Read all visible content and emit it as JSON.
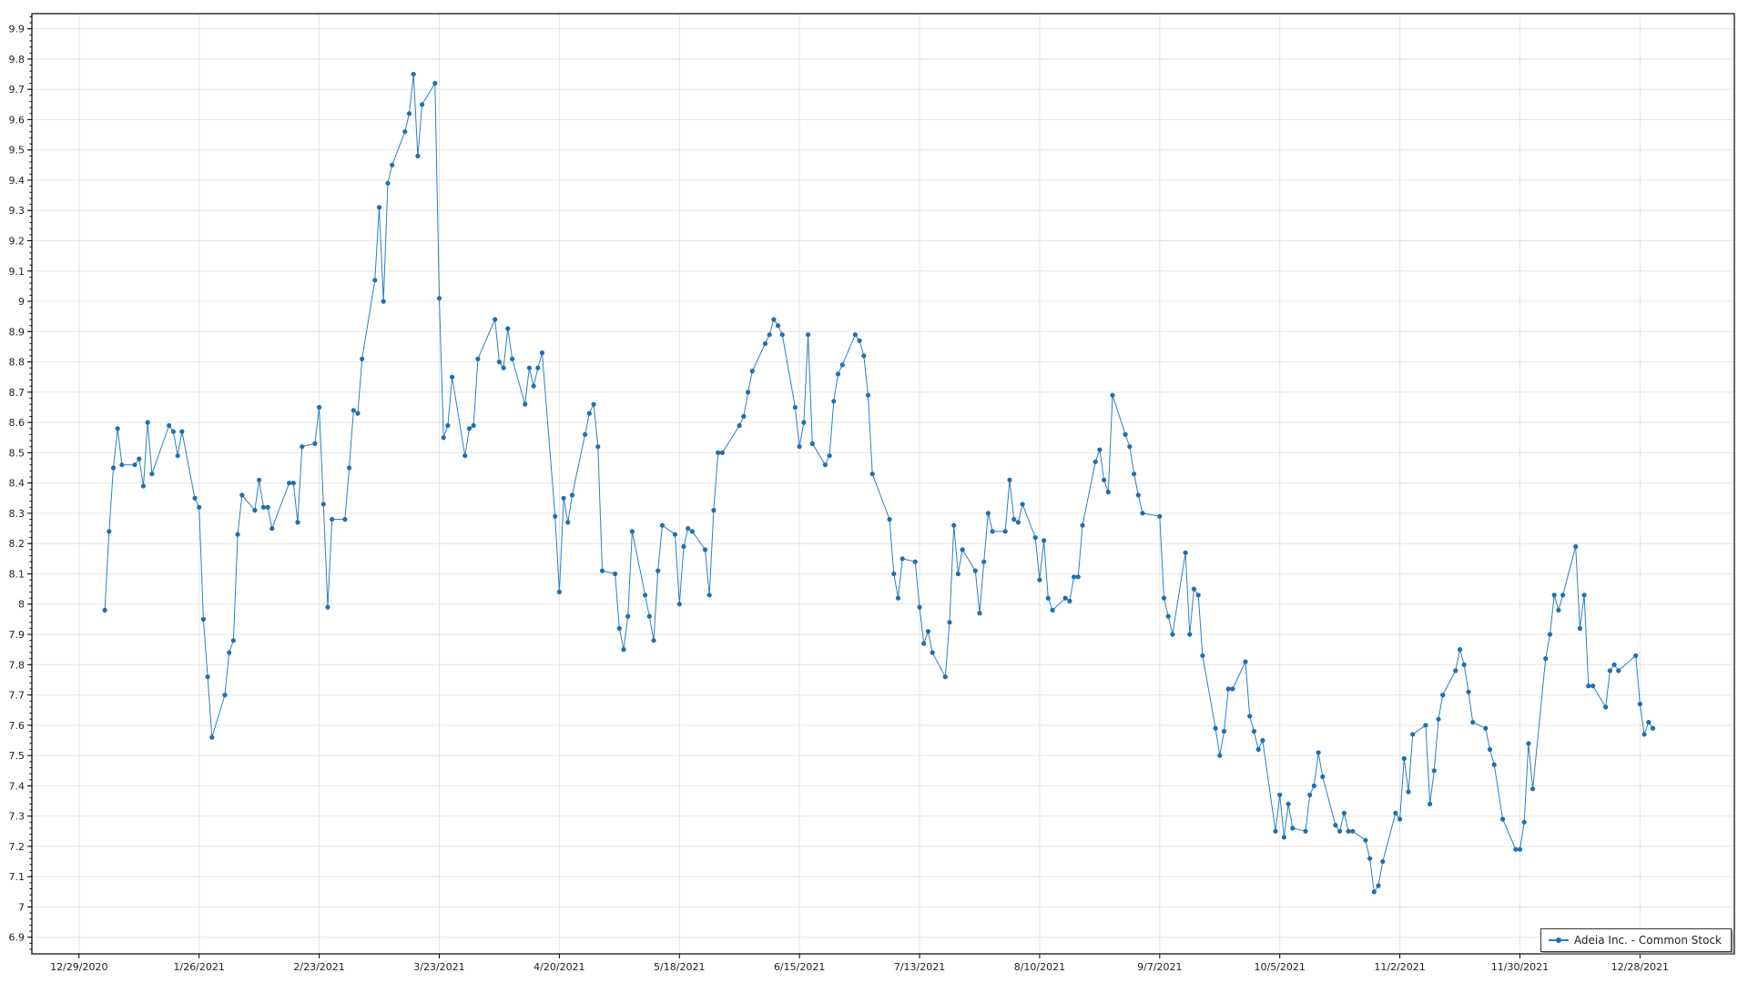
{
  "chart_data": {
    "type": "line",
    "title": "",
    "xlabel": "",
    "ylabel": "",
    "xlim": [
      "2020-12-18",
      "2022-01-19"
    ],
    "ylim": [
      6.845,
      9.95
    ],
    "grid": true,
    "legend_placement": "bottom-right",
    "colors": {
      "line": "#2f7fc1",
      "marker": "#1f6fb0",
      "grid": "#e4e4e4",
      "axis": "#000000"
    },
    "x_ticks": [
      "12/29/2020",
      "1/26/2021",
      "2/23/2021",
      "3/23/2021",
      "4/20/2021",
      "5/18/2021",
      "6/15/2021",
      "7/13/2021",
      "8/10/2021",
      "9/7/2021",
      "10/5/2021",
      "11/2/2021",
      "11/30/2021",
      "12/28/2021"
    ],
    "y_ticks": [
      "6.9",
      "7",
      "7.1",
      "7.2",
      "7.3",
      "7.4",
      "7.5",
      "7.6",
      "7.7",
      "7.8",
      "7.9",
      "8",
      "8.1",
      "8.2",
      "8.3",
      "8.4",
      "8.5",
      "8.6",
      "8.7",
      "8.8",
      "8.9",
      "9",
      "9.1",
      "9.2",
      "9.3",
      "9.4",
      "9.5",
      "9.6",
      "9.7",
      "9.8",
      "9.9"
    ],
    "series": [
      {
        "name": "Adeia Inc.  - Common Stock",
        "points": [
          [
            "2021-01-04",
            7.98
          ],
          [
            "2021-01-05",
            8.24
          ],
          [
            "2021-01-06",
            8.45
          ],
          [
            "2021-01-07",
            8.58
          ],
          [
            "2021-01-08",
            8.46
          ],
          [
            "2021-01-11",
            8.46
          ],
          [
            "2021-01-12",
            8.48
          ],
          [
            "2021-01-13",
            8.39
          ],
          [
            "2021-01-14",
            8.6
          ],
          [
            "2021-01-15",
            8.43
          ],
          [
            "2021-01-19",
            8.59
          ],
          [
            "2021-01-20",
            8.57
          ],
          [
            "2021-01-21",
            8.49
          ],
          [
            "2021-01-22",
            8.57
          ],
          [
            "2021-01-25",
            8.35
          ],
          [
            "2021-01-26",
            8.32
          ],
          [
            "2021-01-27",
            7.95
          ],
          [
            "2021-01-28",
            7.76
          ],
          [
            "2021-01-29",
            7.56
          ],
          [
            "2021-02-01",
            7.7
          ],
          [
            "2021-02-02",
            7.84
          ],
          [
            "2021-02-03",
            7.88
          ],
          [
            "2021-02-04",
            8.23
          ],
          [
            "2021-02-05",
            8.36
          ],
          [
            "2021-02-08",
            8.31
          ],
          [
            "2021-02-09",
            8.41
          ],
          [
            "2021-02-10",
            8.32
          ],
          [
            "2021-02-11",
            8.32
          ],
          [
            "2021-02-12",
            8.25
          ],
          [
            "2021-02-16",
            8.4
          ],
          [
            "2021-02-17",
            8.4
          ],
          [
            "2021-02-18",
            8.27
          ],
          [
            "2021-02-19",
            8.52
          ],
          [
            "2021-02-22",
            8.53
          ],
          [
            "2021-02-23",
            8.65
          ],
          [
            "2021-02-24",
            8.33
          ],
          [
            "2021-02-25",
            7.99
          ],
          [
            "2021-02-26",
            8.28
          ],
          [
            "2021-03-01",
            8.28
          ],
          [
            "2021-03-02",
            8.45
          ],
          [
            "2021-03-03",
            8.64
          ],
          [
            "2021-03-04",
            8.63
          ],
          [
            "2021-03-05",
            8.81
          ],
          [
            "2021-03-08",
            9.07
          ],
          [
            "2021-03-09",
            9.31
          ],
          [
            "2021-03-10",
            9.0
          ],
          [
            "2021-03-11",
            9.39
          ],
          [
            "2021-03-12",
            9.45
          ],
          [
            "2021-03-15",
            9.56
          ],
          [
            "2021-03-16",
            9.62
          ],
          [
            "2021-03-17",
            9.75
          ],
          [
            "2021-03-18",
            9.48
          ],
          [
            "2021-03-19",
            9.65
          ],
          [
            "2021-03-22",
            9.72
          ],
          [
            "2021-03-23",
            9.01
          ],
          [
            "2021-03-24",
            8.55
          ],
          [
            "2021-03-25",
            8.59
          ],
          [
            "2021-03-26",
            8.75
          ],
          [
            "2021-03-29",
            8.49
          ],
          [
            "2021-03-30",
            8.58
          ],
          [
            "2021-03-31",
            8.59
          ],
          [
            "2021-04-01",
            8.81
          ],
          [
            "2021-04-05",
            8.94
          ],
          [
            "2021-04-06",
            8.8
          ],
          [
            "2021-04-07",
            8.78
          ],
          [
            "2021-04-08",
            8.91
          ],
          [
            "2021-04-09",
            8.81
          ],
          [
            "2021-04-12",
            8.66
          ],
          [
            "2021-04-13",
            8.78
          ],
          [
            "2021-04-14",
            8.72
          ],
          [
            "2021-04-15",
            8.78
          ],
          [
            "2021-04-16",
            8.83
          ],
          [
            "2021-04-19",
            8.29
          ],
          [
            "2021-04-20",
            8.04
          ],
          [
            "2021-04-21",
            8.35
          ],
          [
            "2021-04-22",
            8.27
          ],
          [
            "2021-04-23",
            8.36
          ],
          [
            "2021-04-26",
            8.56
          ],
          [
            "2021-04-27",
            8.63
          ],
          [
            "2021-04-28",
            8.66
          ],
          [
            "2021-04-29",
            8.52
          ],
          [
            "2021-04-30",
            8.11
          ],
          [
            "2021-05-03",
            8.1
          ],
          [
            "2021-05-04",
            7.92
          ],
          [
            "2021-05-05",
            7.85
          ],
          [
            "2021-05-06",
            7.96
          ],
          [
            "2021-05-07",
            8.24
          ],
          [
            "2021-05-10",
            8.03
          ],
          [
            "2021-05-11",
            7.96
          ],
          [
            "2021-05-12",
            7.88
          ],
          [
            "2021-05-13",
            8.11
          ],
          [
            "2021-05-14",
            8.26
          ],
          [
            "2021-05-17",
            8.23
          ],
          [
            "2021-05-18",
            8.0
          ],
          [
            "2021-05-19",
            8.19
          ],
          [
            "2021-05-20",
            8.25
          ],
          [
            "2021-05-21",
            8.24
          ],
          [
            "2021-05-24",
            8.18
          ],
          [
            "2021-05-25",
            8.03
          ],
          [
            "2021-05-26",
            8.31
          ],
          [
            "2021-05-27",
            8.5
          ],
          [
            "2021-05-28",
            8.5
          ],
          [
            "2021-06-01",
            8.59
          ],
          [
            "2021-06-02",
            8.62
          ],
          [
            "2021-06-03",
            8.7
          ],
          [
            "2021-06-04",
            8.77
          ],
          [
            "2021-06-07",
            8.86
          ],
          [
            "2021-06-08",
            8.89
          ],
          [
            "2021-06-09",
            8.94
          ],
          [
            "2021-06-10",
            8.92
          ],
          [
            "2021-06-11",
            8.89
          ],
          [
            "2021-06-14",
            8.65
          ],
          [
            "2021-06-15",
            8.52
          ],
          [
            "2021-06-16",
            8.6
          ],
          [
            "2021-06-17",
            8.89
          ],
          [
            "2021-06-18",
            8.53
          ],
          [
            "2021-06-21",
            8.46
          ],
          [
            "2021-06-22",
            8.49
          ],
          [
            "2021-06-23",
            8.67
          ],
          [
            "2021-06-24",
            8.76
          ],
          [
            "2021-06-25",
            8.79
          ],
          [
            "2021-06-28",
            8.89
          ],
          [
            "2021-06-29",
            8.87
          ],
          [
            "2021-06-30",
            8.82
          ],
          [
            "2021-07-01",
            8.69
          ],
          [
            "2021-07-02",
            8.43
          ],
          [
            "2021-07-06",
            8.28
          ],
          [
            "2021-07-07",
            8.1
          ],
          [
            "2021-07-08",
            8.02
          ],
          [
            "2021-07-09",
            8.15
          ],
          [
            "2021-07-12",
            8.14
          ],
          [
            "2021-07-13",
            7.99
          ],
          [
            "2021-07-14",
            7.87
          ],
          [
            "2021-07-15",
            7.91
          ],
          [
            "2021-07-16",
            7.84
          ],
          [
            "2021-07-19",
            7.76
          ],
          [
            "2021-07-20",
            7.94
          ],
          [
            "2021-07-21",
            8.26
          ],
          [
            "2021-07-22",
            8.1
          ],
          [
            "2021-07-23",
            8.18
          ],
          [
            "2021-07-26",
            8.11
          ],
          [
            "2021-07-27",
            7.97
          ],
          [
            "2021-07-28",
            8.14
          ],
          [
            "2021-07-29",
            8.3
          ],
          [
            "2021-07-30",
            8.24
          ],
          [
            "2021-08-02",
            8.24
          ],
          [
            "2021-08-03",
            8.41
          ],
          [
            "2021-08-04",
            8.28
          ],
          [
            "2021-08-05",
            8.27
          ],
          [
            "2021-08-06",
            8.33
          ],
          [
            "2021-08-09",
            8.22
          ],
          [
            "2021-08-10",
            8.08
          ],
          [
            "2021-08-11",
            8.21
          ],
          [
            "2021-08-12",
            8.02
          ],
          [
            "2021-08-13",
            7.98
          ],
          [
            "2021-08-16",
            8.02
          ],
          [
            "2021-08-17",
            8.01
          ],
          [
            "2021-08-18",
            8.09
          ],
          [
            "2021-08-19",
            8.09
          ],
          [
            "2021-08-20",
            8.26
          ],
          [
            "2021-08-23",
            8.47
          ],
          [
            "2021-08-24",
            8.51
          ],
          [
            "2021-08-25",
            8.41
          ],
          [
            "2021-08-26",
            8.37
          ],
          [
            "2021-08-27",
            8.69
          ],
          [
            "2021-08-30",
            8.56
          ],
          [
            "2021-08-31",
            8.52
          ],
          [
            "2021-09-01",
            8.43
          ],
          [
            "2021-09-02",
            8.36
          ],
          [
            "2021-09-03",
            8.3
          ],
          [
            "2021-09-07",
            8.29
          ],
          [
            "2021-09-08",
            8.02
          ],
          [
            "2021-09-09",
            7.96
          ],
          [
            "2021-09-10",
            7.9
          ],
          [
            "2021-09-13",
            8.17
          ],
          [
            "2021-09-14",
            7.9
          ],
          [
            "2021-09-15",
            8.05
          ],
          [
            "2021-09-16",
            8.03
          ],
          [
            "2021-09-17",
            7.83
          ],
          [
            "2021-09-20",
            7.59
          ],
          [
            "2021-09-21",
            7.5
          ],
          [
            "2021-09-22",
            7.58
          ],
          [
            "2021-09-23",
            7.72
          ],
          [
            "2021-09-24",
            7.72
          ],
          [
            "2021-09-27",
            7.81
          ],
          [
            "2021-09-28",
            7.63
          ],
          [
            "2021-09-29",
            7.58
          ],
          [
            "2021-09-30",
            7.52
          ],
          [
            "2021-10-01",
            7.55
          ],
          [
            "2021-10-04",
            7.25
          ],
          [
            "2021-10-05",
            7.37
          ],
          [
            "2021-10-06",
            7.23
          ],
          [
            "2021-10-07",
            7.34
          ],
          [
            "2021-10-08",
            7.26
          ],
          [
            "2021-10-11",
            7.25
          ],
          [
            "2021-10-12",
            7.37
          ],
          [
            "2021-10-13",
            7.4
          ],
          [
            "2021-10-14",
            7.51
          ],
          [
            "2021-10-15",
            7.43
          ],
          [
            "2021-10-18",
            7.27
          ],
          [
            "2021-10-19",
            7.25
          ],
          [
            "2021-10-20",
            7.31
          ],
          [
            "2021-10-21",
            7.25
          ],
          [
            "2021-10-22",
            7.25
          ],
          [
            "2021-10-25",
            7.22
          ],
          [
            "2021-10-26",
            7.16
          ],
          [
            "2021-10-27",
            7.05
          ],
          [
            "2021-10-28",
            7.07
          ],
          [
            "2021-10-29",
            7.15
          ],
          [
            "2021-11-01",
            7.31
          ],
          [
            "2021-11-02",
            7.29
          ],
          [
            "2021-11-03",
            7.49
          ],
          [
            "2021-11-04",
            7.38
          ],
          [
            "2021-11-05",
            7.57
          ],
          [
            "2021-11-08",
            7.6
          ],
          [
            "2021-11-09",
            7.34
          ],
          [
            "2021-11-10",
            7.45
          ],
          [
            "2021-11-11",
            7.62
          ],
          [
            "2021-11-12",
            7.7
          ],
          [
            "2021-11-15",
            7.78
          ],
          [
            "2021-11-16",
            7.85
          ],
          [
            "2021-11-17",
            7.8
          ],
          [
            "2021-11-18",
            7.71
          ],
          [
            "2021-11-19",
            7.61
          ],
          [
            "2021-11-22",
            7.59
          ],
          [
            "2021-11-23",
            7.52
          ],
          [
            "2021-11-24",
            7.47
          ],
          [
            "2021-11-26",
            7.29
          ],
          [
            "2021-11-29",
            7.19
          ],
          [
            "2021-11-30",
            7.19
          ],
          [
            "2021-12-01",
            7.28
          ],
          [
            "2021-12-02",
            7.54
          ],
          [
            "2021-12-03",
            7.39
          ],
          [
            "2021-12-06",
            7.82
          ],
          [
            "2021-12-07",
            7.9
          ],
          [
            "2021-12-08",
            8.03
          ],
          [
            "2021-12-09",
            7.98
          ],
          [
            "2021-12-10",
            8.03
          ],
          [
            "2021-12-13",
            8.19
          ],
          [
            "2021-12-14",
            7.92
          ],
          [
            "2021-12-15",
            8.03
          ],
          [
            "2021-12-16",
            7.73
          ],
          [
            "2021-12-17",
            7.73
          ],
          [
            "2021-12-20",
            7.66
          ],
          [
            "2021-12-21",
            7.78
          ],
          [
            "2021-12-22",
            7.8
          ],
          [
            "2021-12-23",
            7.78
          ],
          [
            "2021-12-27",
            7.83
          ],
          [
            "2021-12-28",
            7.67
          ],
          [
            "2021-12-29",
            7.57
          ],
          [
            "2021-12-30",
            7.61
          ],
          [
            "2021-12-31",
            7.59
          ]
        ]
      }
    ]
  }
}
